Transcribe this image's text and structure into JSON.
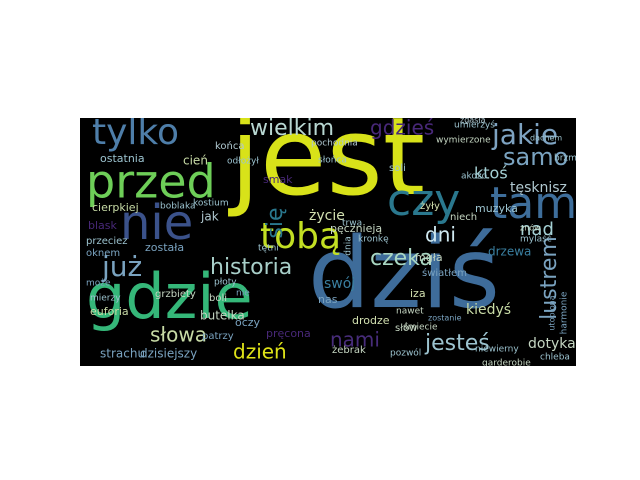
{
  "word_cloud": {
    "background": "#000000",
    "words": [
      {
        "text": "jest",
        "color": "#d8e219"
      },
      {
        "text": "dziś",
        "color": "#3e6c9a"
      },
      {
        "text": "gdzie",
        "color": "#35b779"
      },
      {
        "text": "przed",
        "color": "#6ece58"
      },
      {
        "text": "nie",
        "color": "#3b528b"
      },
      {
        "text": "tam",
        "color": "#3e6e9b"
      },
      {
        "text": "tylko",
        "color": "#4e7ea9"
      },
      {
        "text": "czy",
        "color": "#2a788e"
      },
      {
        "text": "tobą",
        "color": "#c2df23"
      },
      {
        "text": "jakie",
        "color": "#7ea3c2"
      },
      {
        "text": "samo",
        "color": "#7aa3c0"
      },
      {
        "text": "już",
        "color": "#7aa3c0"
      },
      {
        "text": "wielkim",
        "color": "#b8d7d2"
      },
      {
        "text": "gdzieś",
        "color": "#482878"
      },
      {
        "text": "historia",
        "color": "#a8cfc9"
      },
      {
        "text": "czeka",
        "color": "#a8d6c2"
      },
      {
        "text": "słowa",
        "color": "#c8dba6"
      },
      {
        "text": "nami",
        "color": "#472c7a"
      },
      {
        "text": "jesteś",
        "color": "#9cc3cf"
      },
      {
        "text": "dzień",
        "color": "#dfe318"
      },
      {
        "text": "lustrem",
        "color": "#7aa3c0"
      },
      {
        "text": "dni",
        "color": "#cfe8f0"
      },
      {
        "text": "nad",
        "color": "#a4d0d4"
      },
      {
        "text": "ktoś",
        "color": "#a4d0d4"
      },
      {
        "text": "się",
        "color": "#2a788e"
      },
      {
        "text": "dotyka",
        "color": "#c5d6c2"
      },
      {
        "text": "drzewa",
        "color": "#3a7fa0"
      },
      {
        "text": "swój",
        "color": "#3a7fa0"
      },
      {
        "text": "tęsknisz",
        "color": "#b0c8d0"
      },
      {
        "text": "muzyka",
        "color": "#9cc3cf"
      },
      {
        "text": "życie",
        "color": "#d2e0b0"
      },
      {
        "text": "jak",
        "color": "#b0c8d0"
      },
      {
        "text": "butelka",
        "color": "#c5d6c2"
      },
      {
        "text": "dzisiejszy",
        "color": "#7aa3c0"
      },
      {
        "text": "strachu",
        "color": "#7aa3c0"
      },
      {
        "text": "cień",
        "color": "#c8dba6"
      },
      {
        "text": "ostatnia",
        "color": "#9cc3cf"
      },
      {
        "text": "cierpkiej",
        "color": "#c8dba6"
      },
      {
        "text": "euforia",
        "color": "#c8dba6"
      },
      {
        "text": "grzbiety",
        "color": "#c5d6c2"
      },
      {
        "text": "została",
        "color": "#7aa3c0"
      },
      {
        "text": "oknem",
        "color": "#7aa3c0"
      },
      {
        "text": "blask",
        "color": "#482878"
      },
      {
        "text": "końca",
        "color": "#b0c8d0"
      },
      {
        "text": "tętni",
        "color": "#9cc3cf"
      },
      {
        "text": "niewierny",
        "color": "#9cc3cf"
      },
      {
        "text": "garderobie",
        "color": "#c5d6c2"
      },
      {
        "text": "chleba",
        "color": "#9cc3cf"
      },
      {
        "text": "pozwól",
        "color": "#9cc3cf"
      },
      {
        "text": "słów",
        "color": "#c5d6c2"
      },
      {
        "text": "drodze",
        "color": "#d2e0b0"
      },
      {
        "text": "kiedyś",
        "color": "#c8dba6"
      },
      {
        "text": "oczy",
        "color": "#7aa3c0"
      },
      {
        "text": "patrzy",
        "color": "#7aa3c0"
      },
      {
        "text": "boli",
        "color": "#c5d6c2"
      },
      {
        "text": "harmonie",
        "color": "#7aa3c0"
      },
      {
        "text": "mgła",
        "color": "#c5d6c2"
      },
      {
        "text": "iza",
        "color": "#d2e0b0"
      },
      {
        "text": "soli",
        "color": "#9cc3cf"
      },
      {
        "text": "żyły",
        "color": "#d2e0b0"
      },
      {
        "text": "światłem",
        "color": "#7aa3c0"
      },
      {
        "text": "niech",
        "color": "#c5d6c2"
      },
      {
        "text": "umierzyś",
        "color": "#9cc3cf"
      },
      {
        "text": "wymierzone",
        "color": "#c5d6c2"
      },
      {
        "text": "zgasła",
        "color": "#b0c8d0"
      },
      {
        "text": "pochodnia",
        "color": "#b0c8d0"
      },
      {
        "text": "brzmi",
        "color": "#9cc3cf"
      },
      {
        "text": "zostanie",
        "color": "#7aa3c0"
      },
      {
        "text": "smak",
        "color": "#482878"
      },
      {
        "text": "pęcznieją",
        "color": "#c5d6c2"
      },
      {
        "text": "nas",
        "color": "#7aa3c0"
      },
      {
        "text": "żebrak",
        "color": "#c5d6c2"
      },
      {
        "text": "śmiecie",
        "color": "#c5d6c2"
      },
      {
        "text": "nawet",
        "color": "#c5d6c2"
      },
      {
        "text": "kronkę",
        "color": "#9cc3cf"
      },
      {
        "text": "mylaść",
        "color": "#9cc3cf"
      },
      {
        "text": "utopiona",
        "color": "#7aa3c0"
      },
      {
        "text": "dachem",
        "color": "#9cc3cf"
      },
      {
        "text": "znów",
        "color": "#c5d6c2"
      },
      {
        "text": "przeciez",
        "color": "#9cc3cf"
      },
      {
        "text": "kostium",
        "color": "#9cc3cf"
      },
      {
        "text": "boblaka",
        "color": "#9cc3cf"
      },
      {
        "text": "odłożył",
        "color": "#9cc3cf"
      },
      {
        "text": "słońca",
        "color": "#9cc3cf"
      },
      {
        "text": "dnia",
        "color": "#9cc3cf"
      },
      {
        "text": "trwa",
        "color": "#9cc3cf"
      },
      {
        "text": "akozo",
        "color": "#9cc3cf"
      },
      {
        "text": "może",
        "color": "#7aa3c0"
      },
      {
        "text": "mierzy",
        "color": "#9cc3cf"
      },
      {
        "text": "pręcona",
        "color": "#482878"
      },
      {
        "text": "nie",
        "color": "#7aa3c0"
      },
      {
        "text": "płoty",
        "color": "#9cc3cf"
      }
    ]
  }
}
